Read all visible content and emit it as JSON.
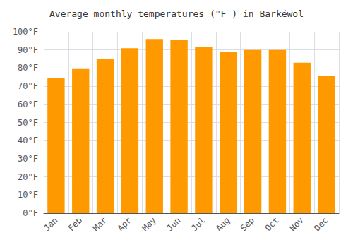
{
  "chart_data": {
    "type": "bar",
    "title": "Average monthly temperatures (°F ) in Barkéwol",
    "categories": [
      "Jan",
      "Feb",
      "Mar",
      "Apr",
      "May",
      "Jun",
      "Jul",
      "Aug",
      "Sep",
      "Oct",
      "Nov",
      "Dec"
    ],
    "values": [
      74.5,
      79.5,
      85.0,
      91.0,
      96.0,
      95.5,
      91.5,
      89.0,
      90.0,
      90.0,
      83.0,
      75.5
    ],
    "color": "#FF9900",
    "ylim": [
      0,
      100
    ],
    "yticks": [
      {
        "value": 0,
        "label": "0°F"
      },
      {
        "value": 10,
        "label": "10°F"
      },
      {
        "value": 20,
        "label": "20°F"
      },
      {
        "value": 30,
        "label": "30°F"
      },
      {
        "value": 40,
        "label": "40°F"
      },
      {
        "value": 50,
        "label": "50°F"
      },
      {
        "value": 60,
        "label": "60°F"
      },
      {
        "value": 70,
        "label": "70°F"
      },
      {
        "value": 80,
        "label": "80°F"
      },
      {
        "value": 90,
        "label": "90°F"
      },
      {
        "value": 100,
        "label": "100°F"
      }
    ],
    "grid": true
  }
}
